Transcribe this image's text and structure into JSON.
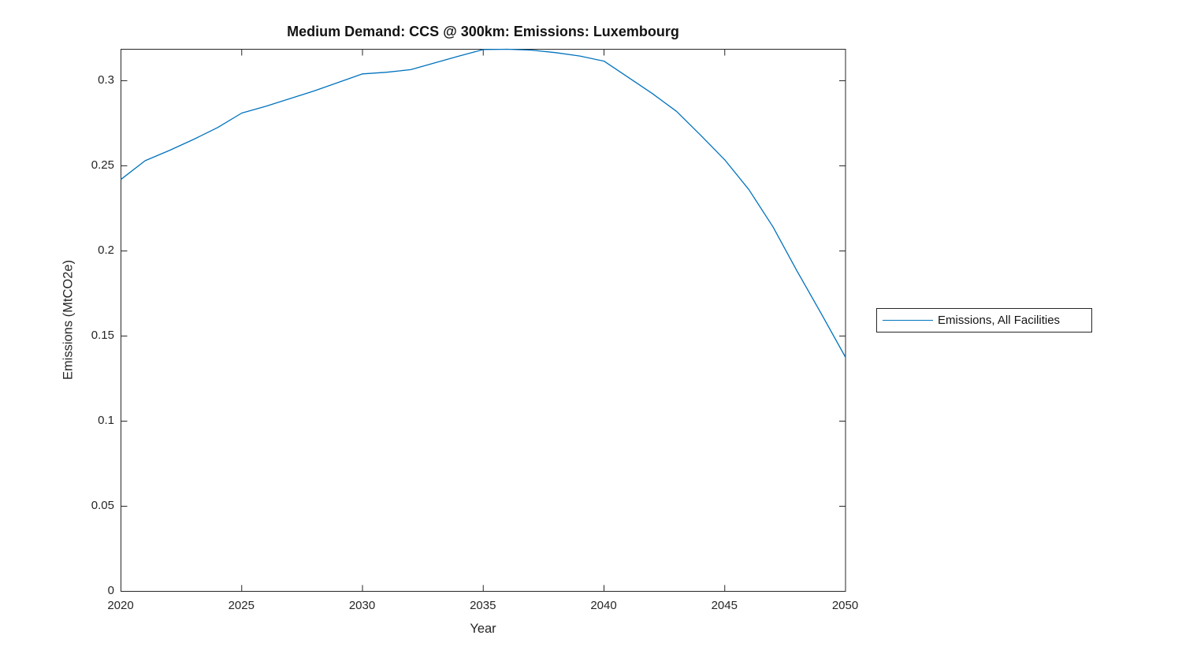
{
  "chart_data": {
    "type": "line",
    "title": "Medium Demand: CCS @ 300km: Emissions: Luxembourg",
    "xlabel": "Year",
    "ylabel": "Emissions (MtCO2e)",
    "legend": [
      "Emissions, All Facilities"
    ],
    "legend_position": "outside-right",
    "grid": false,
    "box": true,
    "tick_direction": "in",
    "xlim": [
      2020,
      2050
    ],
    "ylim": [
      0,
      0.3185
    ],
    "xticks": [
      2020,
      2025,
      2030,
      2035,
      2040,
      2045,
      2050
    ],
    "xtick_labels": [
      "2020",
      "2025",
      "2030",
      "2035",
      "2040",
      "2045",
      "2050"
    ],
    "yticks": [
      0,
      0.05,
      0.1,
      0.15,
      0.2,
      0.25,
      0.3
    ],
    "ytick_labels": [
      "0",
      "0.05",
      "0.1",
      "0.15",
      "0.2",
      "0.25",
      "0.3"
    ],
    "line_color": "#0072BD",
    "axis_color": "#262626",
    "series": [
      {
        "name": "Emissions, All Facilities",
        "x": [
          2020,
          2021,
          2022,
          2023,
          2024,
          2025,
          2026,
          2027,
          2028,
          2029,
          2030,
          2031,
          2032,
          2033,
          2034,
          2035,
          2036,
          2037,
          2038,
          2039,
          2040,
          2041,
          2042,
          2043,
          2044,
          2045,
          2046,
          2047,
          2048,
          2049,
          2050
        ],
        "y": [
          0.242,
          0.253,
          0.259,
          0.2655,
          0.2725,
          0.281,
          0.285,
          0.2895,
          0.294,
          0.299,
          0.304,
          0.305,
          0.3065,
          0.3105,
          0.3145,
          0.3183,
          0.3185,
          0.318,
          0.3165,
          0.3145,
          0.3115,
          0.302,
          0.2925,
          0.282,
          0.268,
          0.2535,
          0.236,
          0.214,
          0.188,
          0.163,
          0.1375
        ]
      }
    ]
  }
}
